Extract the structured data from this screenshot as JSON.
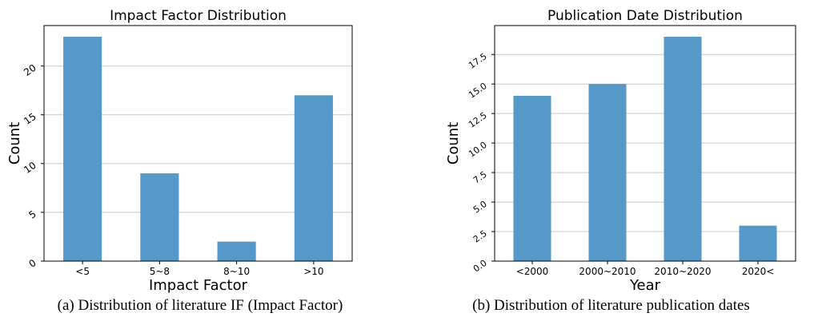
{
  "charts": [
    {
      "caption": "(a) Distribution of literature IF (Impact Factor)",
      "chart_data": {
        "type": "bar",
        "title": "Impact Factor Distribution",
        "xlabel": "Impact Factor",
        "ylabel": "Count",
        "categories": [
          "<5",
          "5~8",
          "8~10",
          ">10"
        ],
        "values": [
          23,
          9,
          2,
          17
        ],
        "ylim": [
          0,
          24.15
        ],
        "yticks": [
          "0",
          "5",
          "10",
          "15",
          "20"
        ],
        "ytick_values": [
          0,
          5,
          10,
          15,
          20
        ],
        "grid": "horizontal",
        "bar_color": "#5499c7"
      }
    },
    {
      "caption": "(b) Distribution of literature publication dates",
      "chart_data": {
        "type": "bar",
        "title": "Publication Date Distribution",
        "xlabel": "Year",
        "ylabel": "Count",
        "categories": [
          "<2000",
          "2000~2010",
          "2010~2020",
          "2020<"
        ],
        "values": [
          14,
          15,
          19,
          3
        ],
        "ylim": [
          0,
          19.95
        ],
        "yticks": [
          "0.0",
          "2.5",
          "5.0",
          "7.5",
          "10.0",
          "12.5",
          "15.0",
          "17.5"
        ],
        "ytick_values": [
          0,
          2.5,
          5,
          7.5,
          10,
          12.5,
          15,
          17.5
        ],
        "grid": "horizontal",
        "bar_color": "#5499c7"
      }
    }
  ]
}
